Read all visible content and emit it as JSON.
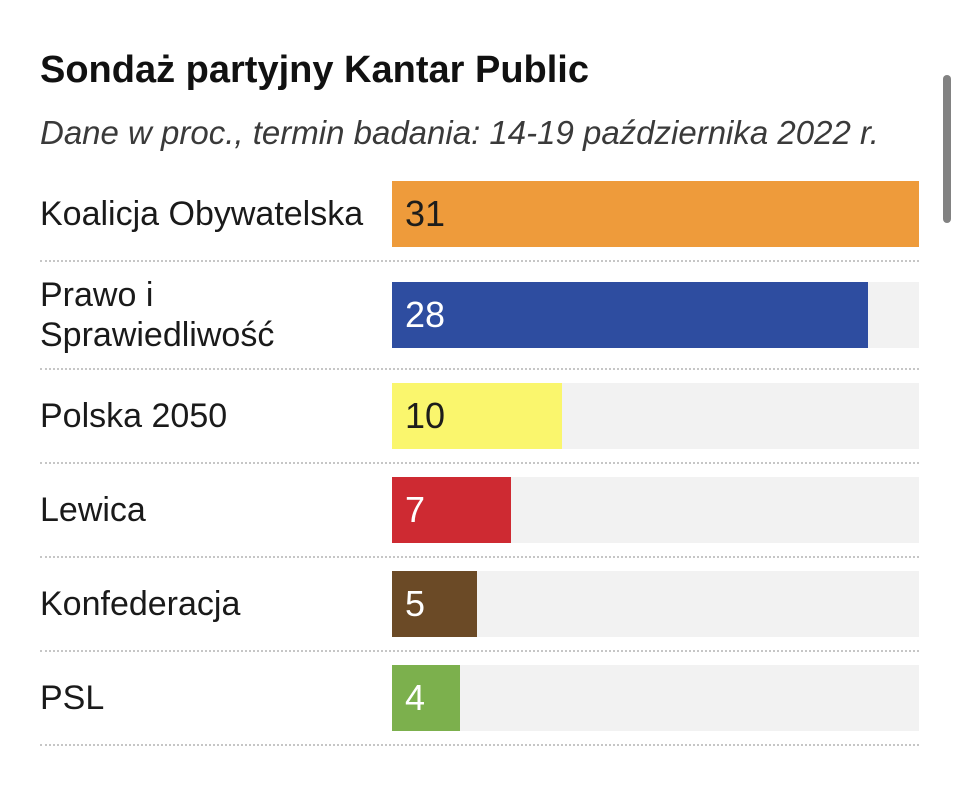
{
  "chart_data": {
    "type": "bar",
    "orientation": "horizontal",
    "title": "Sondaż partyjny Kantar Public",
    "subtitle": "Dane w proc., termin badania: 14-19 października 2022 r.",
    "unit": "percent",
    "categories": [
      "Koalicja Obywatelska",
      "Prawo i Sprawiedliwość",
      "Polska 2050",
      "Lewica",
      "Konfederacja",
      "PSL"
    ],
    "values": [
      31,
      28,
      10,
      7,
      5,
      4
    ],
    "xlim": [
      0,
      31
    ],
    "grid": false,
    "legend": false,
    "value_labels_inside_bars": true,
    "bar_colors": [
      "#EE9B3B",
      "#2E4DA0",
      "#FAF66D",
      "#CE2A32",
      "#6B4A26",
      "#7CB04D"
    ],
    "value_label_colors": [
      "#1d1d1b",
      "#ffffff",
      "#1d1d1b",
      "#ffffff",
      "#ffffff",
      "#ffffff"
    ],
    "track_color": "#F2F2F2",
    "separator_color": "#C6C6C6"
  },
  "scrollbar": {
    "present": true,
    "color": "#828282"
  }
}
